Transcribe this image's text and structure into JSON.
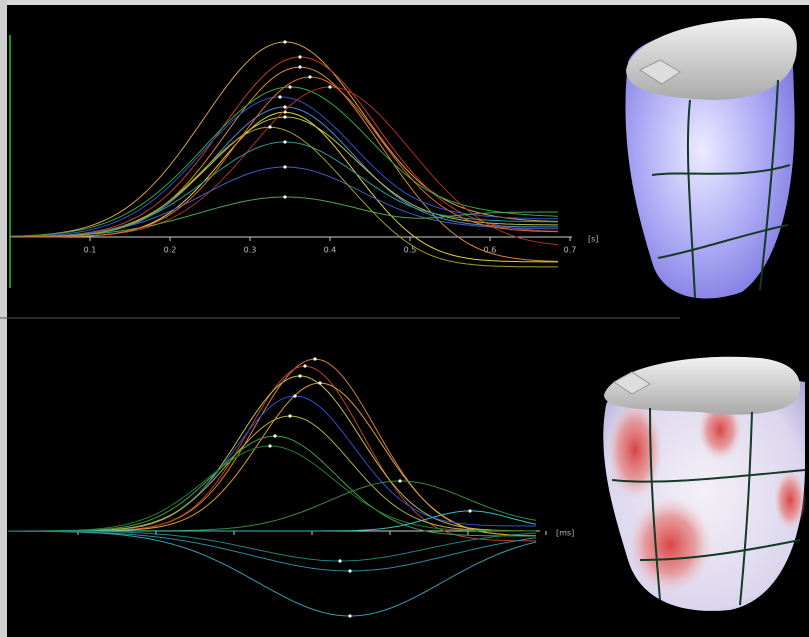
{
  "top_plot": {
    "x_ticks": [
      "0.1",
      "0.2",
      "0.3",
      "0.4",
      "0.5",
      "0.6",
      "0.7"
    ],
    "unit": "[s]"
  },
  "bottom_plot": {
    "unit": "[ms]"
  }
}
